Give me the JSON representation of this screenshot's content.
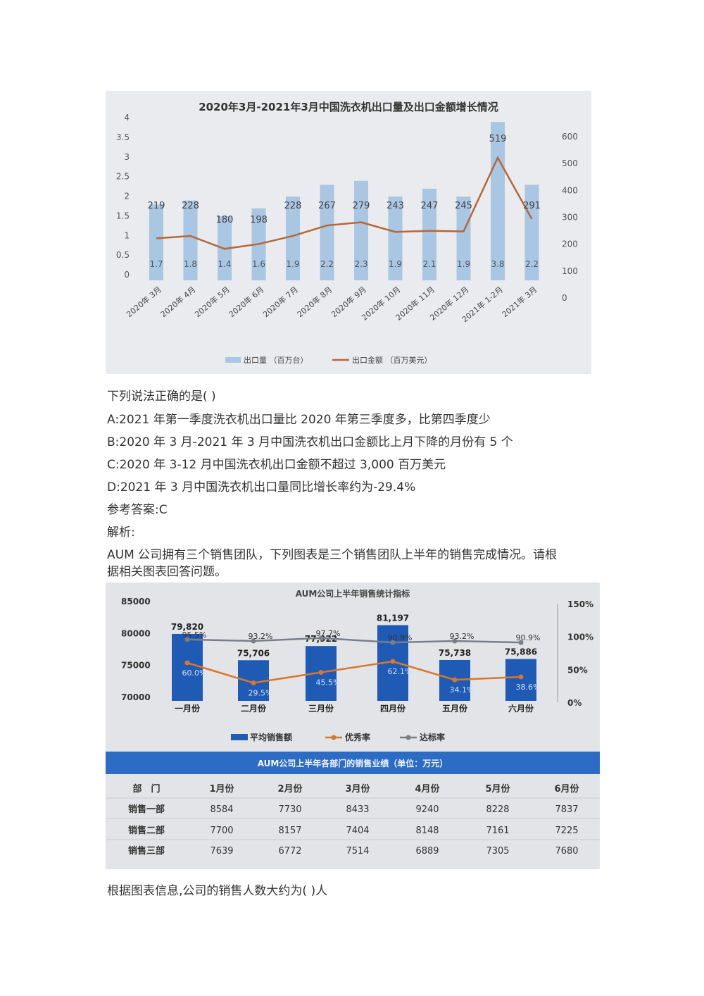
{
  "chart1": {
    "title": "2020年3月-2021年3月中国洗衣机出口量及出口金额增长情况",
    "chart_data": {
      "type": "bar",
      "title": "2020年3月-2021年3月中国洗衣机出口量及出口金额增长情况",
      "categories": [
        "2020年 3月",
        "2020年 4月",
        "2020年 5月",
        "2020年 6月",
        "2020年 7月",
        "2020年 8月",
        "2020年 9月",
        "2020年 10月",
        "2020年 11月",
        "2020年 12月",
        "2021年 1-2月",
        "2021年 3月"
      ],
      "series": [
        {
          "name": "出口量 （百万台）",
          "type": "bar",
          "axis": "left",
          "values": [
            1.7,
            1.8,
            1.4,
            1.6,
            1.9,
            2.2,
            2.3,
            1.9,
            2.1,
            1.9,
            3.8,
            2.2
          ]
        },
        {
          "name": "出口金额 （百万美元）",
          "type": "line",
          "axis": "right",
          "values": [
            219,
            228,
            180,
            198,
            228,
            267,
            279,
            243,
            247,
            245,
            519,
            291
          ]
        }
      ],
      "ylim": [
        0,
        4
      ],
      "yticks": [
        "0",
        "0.5",
        "1",
        "1.5",
        "2",
        "2.5",
        "3",
        "3.5",
        "4"
      ],
      "y2lim": [
        0,
        600
      ],
      "y2ticks": [
        "0",
        "100",
        "200",
        "300",
        "400",
        "500",
        "600"
      ],
      "legend_position": "bottom",
      "colors": {
        "bar": "#a9c6e3",
        "line": "#b4673a"
      }
    }
  },
  "text": {
    "question1": "下列说法正确的是( )",
    "optionA": "A:2021 年第一季度洗衣机出口量比 2020 年第三季度多，比第四季度少",
    "optionB": "B:2020 年 3 月-2021 年 3 月中国洗衣机出口金额比上月下降的月份有 5 个",
    "optionC": "C:2020 年 3-12 月中国洗衣机出口金额不超过 3,000 百万美元",
    "optionD": "D:2021 年 3 月中国洗衣机出口量同比增长率约为-29.4%",
    "answer": "参考答案:C",
    "analysis": "解析:",
    "intro_line1": "AUM 公司拥有三个销售团队，下列图表是三个销售团队上半年的销售完成情况。请根",
    "intro_line2": "据相关图表回答问题。",
    "question2": "根据图表信息,公司的销售人数大约为(  )人"
  },
  "chart2": {
    "title": "AUM公司上半年销售统计指标",
    "chart_data": {
      "type": "bar",
      "title": "AUM公司上半年销售统计指标",
      "categories": [
        "一月份",
        "二月份",
        "三月份",
        "四月份",
        "五月份",
        "六月份"
      ],
      "series": [
        {
          "name": "平均销售额",
          "type": "bar",
          "axis": "left",
          "values": [
            79820,
            75706,
            77922,
            81197,
            75738,
            75886
          ],
          "labels": [
            "79,820",
            "75,706",
            "77,922",
            "81,197",
            "75,738",
            "75,886"
          ]
        },
        {
          "name": "优秀率",
          "type": "line",
          "axis": "right",
          "values": [
            60.0,
            29.5,
            45.5,
            62.1,
            34.1,
            38.6
          ],
          "labels": [
            "60.0%",
            "29.5%",
            "45.5%",
            "62.1%",
            "34.1%",
            "38.6%"
          ]
        },
        {
          "name": "达标率",
          "type": "line",
          "axis": "right",
          "values": [
            95.5,
            93.2,
            97.7,
            90.9,
            93.2,
            90.9
          ],
          "labels": [
            "95.5%",
            "93.2%",
            "97.7%",
            "90.9%",
            "93.2%",
            "90.9%"
          ]
        }
      ],
      "ylim": [
        70000,
        85000
      ],
      "yticks": [
        "70000",
        "75000",
        "80000",
        "85000"
      ],
      "y2lim": [
        0,
        150
      ],
      "y2ticks": [
        "0%",
        "50%",
        "100%",
        "150%"
      ],
      "legend_position": "bottom",
      "colors": {
        "bar": "#1f5bb5",
        "excellent": "#d7772d",
        "standard": "#7a7f86"
      }
    }
  },
  "table": {
    "title": "AUM公司上半年各部门的销售业绩（单位：万元）",
    "headers": [
      "部　门",
      "1月份",
      "2月份",
      "3月份",
      "4月份",
      "5月份",
      "6月份"
    ],
    "rows": [
      [
        "销售一部",
        "8584",
        "7730",
        "8433",
        "9240",
        "8228",
        "7837"
      ],
      [
        "销售二部",
        "7700",
        "8157",
        "7404",
        "8148",
        "7161",
        "7225"
      ],
      [
        "销售三部",
        "7639",
        "6772",
        "7514",
        "6889",
        "7305",
        "7680"
      ]
    ]
  }
}
